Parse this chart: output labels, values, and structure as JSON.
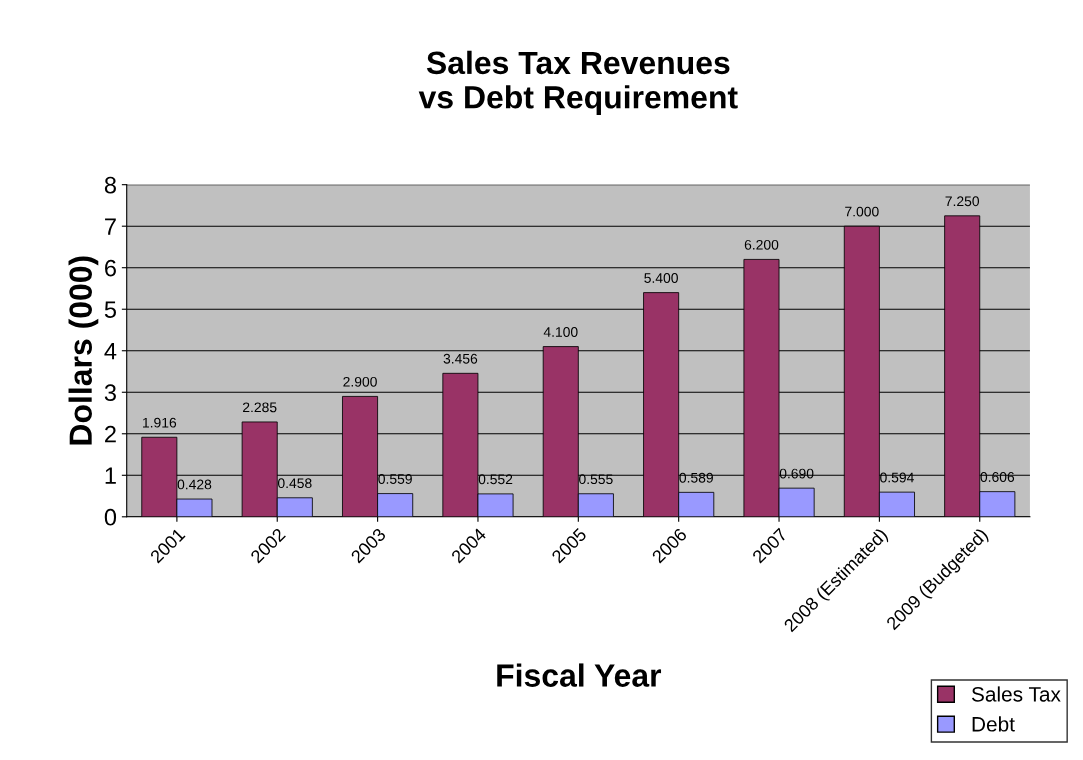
{
  "chart_data": {
    "type": "bar",
    "title": "Sales Tax Revenues\nvs Debt Requirement",
    "xlabel": "Fiscal Year",
    "ylabel": "Dollars (000)",
    "categories": [
      "2001",
      "2002",
      "2003",
      "2004",
      "2005",
      "2006",
      "2007",
      "2008 (Estimated)",
      "2009 (Budgeted)"
    ],
    "series": [
      {
        "name": "Sales Tax",
        "color": "#993366",
        "values": [
          1.916,
          2.285,
          2.9,
          3.456,
          4.1,
          5.4,
          6.2,
          7.0,
          7.25
        ],
        "value_labels": [
          "1.916",
          "2.285",
          "2.900",
          "3.456",
          "4.100",
          "5.400",
          "6.200",
          "7.000",
          "7.250"
        ]
      },
      {
        "name": "Debt",
        "color": "#9999ff",
        "values": [
          0.428,
          0.458,
          0.559,
          0.552,
          0.555,
          0.589,
          0.69,
          0.594,
          0.606
        ],
        "value_labels": [
          "0.428",
          "0.458",
          "0.559",
          "0.552",
          "0.555",
          "0.589",
          "0.690",
          "0.594",
          "0.606"
        ]
      }
    ],
    "ylim": [
      0,
      8
    ],
    "yticks": [
      0,
      1,
      2,
      3,
      4,
      5,
      6,
      7,
      8
    ],
    "grid": "y",
    "legend": "bottom right"
  }
}
